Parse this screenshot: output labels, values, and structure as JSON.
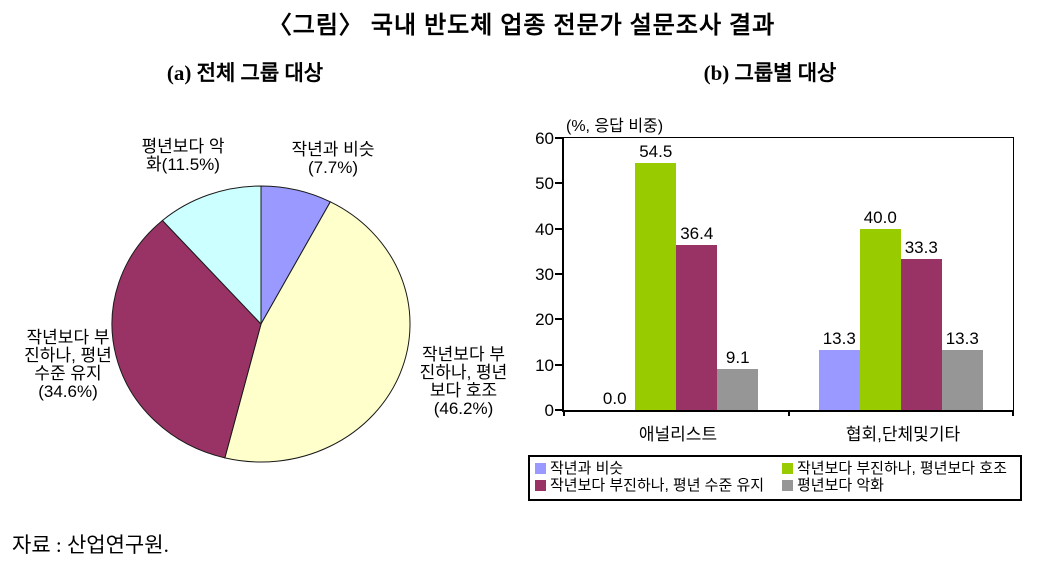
{
  "figure": {
    "title": "〈그림〉 국내 반도체 업종 전문가 설문조사 결과",
    "subtitle_a": "(a) 전체 그룹 대상",
    "subtitle_b": "(b) 그룹별 대상",
    "source": "자료 : 산업연구원."
  },
  "pie_labels": {
    "similar": "작년과 비슷\n(7.7%)",
    "better": "작년보다 부\n진하나, 평년\n보다 호조\n(46.2%)",
    "maintain": "작년보다 부\n진하나, 평년\n수준 유지\n(34.6%)",
    "worse": "평년보다 악\n화(11.5%)"
  },
  "chart_data": [
    {
      "type": "pie",
      "title": "(a) 전체 그룹 대상",
      "start_angle_deg": 0,
      "direction": "clockwise",
      "slices": [
        {
          "label": "작년과 비슷",
          "value": 7.7,
          "color": "#9999FF"
        },
        {
          "label": "작년보다 부진하나, 평년보다 호조",
          "value": 46.2,
          "color": "#FFFFCC"
        },
        {
          "label": "작년보다 부진하나, 평년 수준 유지",
          "value": 34.6,
          "color": "#993366"
        },
        {
          "label": "평년보다 악화",
          "value": 11.5,
          "color": "#CCFFFF"
        }
      ]
    },
    {
      "type": "bar",
      "title": "(b) 그룹별 대상",
      "unit_label": "(%, 응답 비중)",
      "categories": [
        "애널리스트",
        "협회,단체및기타"
      ],
      "series": [
        {
          "name": "작년과 비슷",
          "color": "#9999FF",
          "values": [
            0.0,
            13.3
          ]
        },
        {
          "name": "작년보다 부진하나, 평년보다 호조",
          "color": "#99CC00",
          "values": [
            54.5,
            40.0
          ]
        },
        {
          "name": "작년보다 부진하나, 평년 수준 유지",
          "color": "#993366",
          "values": [
            36.4,
            33.3
          ]
        },
        {
          "name": "평년보다 악화",
          "color": "#969696",
          "values": [
            9.1,
            13.3
          ]
        }
      ],
      "ylim": [
        0,
        60
      ],
      "yticks": [
        0,
        10,
        20,
        30,
        40,
        50,
        60
      ],
      "grid": false,
      "value_labels_decimals": 1,
      "legend_position": "bottom-box"
    }
  ]
}
